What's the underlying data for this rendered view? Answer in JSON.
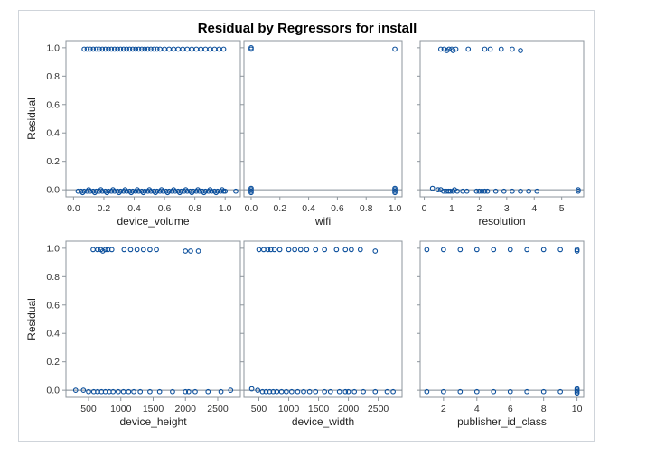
{
  "title": "Residual by Regressors for install",
  "colors": {
    "marker": "#0b4f9c",
    "refline": "#7f8a95",
    "frame": "#8d959c",
    "tick": "#333333"
  },
  "chart_data": [
    {
      "type": "scatter",
      "panel": 1,
      "xlabel": "device_volume",
      "ylabel": "Residual",
      "xlim": [
        -0.05,
        1.1
      ],
      "ylim": [
        -0.05,
        1.05
      ],
      "xticks": [
        0.0,
        0.2,
        0.4,
        0.6,
        0.8,
        1.0
      ],
      "xtick_labels": [
        "0.0",
        "0.2",
        "0.4",
        "0.6",
        "0.8",
        "1.0"
      ],
      "yticks": [
        0.0,
        0.2,
        0.4,
        0.6,
        0.8,
        1.0
      ],
      "ytick_labels": [
        "0.0",
        "0.2",
        "0.4",
        "0.6",
        "0.8",
        "1.0"
      ],
      "reference_y": 0,
      "points": [
        [
          0.07,
          0.99
        ],
        [
          0.09,
          0.99
        ],
        [
          0.11,
          0.99
        ],
        [
          0.13,
          0.99
        ],
        [
          0.15,
          0.99
        ],
        [
          0.17,
          0.99
        ],
        [
          0.19,
          0.99
        ],
        [
          0.21,
          0.99
        ],
        [
          0.23,
          0.99
        ],
        [
          0.25,
          0.99
        ],
        [
          0.27,
          0.99
        ],
        [
          0.29,
          0.99
        ],
        [
          0.31,
          0.99
        ],
        [
          0.33,
          0.99
        ],
        [
          0.35,
          0.99
        ],
        [
          0.37,
          0.99
        ],
        [
          0.39,
          0.99
        ],
        [
          0.41,
          0.99
        ],
        [
          0.43,
          0.99
        ],
        [
          0.45,
          0.99
        ],
        [
          0.47,
          0.99
        ],
        [
          0.49,
          0.99
        ],
        [
          0.51,
          0.99
        ],
        [
          0.53,
          0.99
        ],
        [
          0.55,
          0.99
        ],
        [
          0.57,
          0.99
        ],
        [
          0.6,
          0.99
        ],
        [
          0.63,
          0.99
        ],
        [
          0.66,
          0.99
        ],
        [
          0.69,
          0.99
        ],
        [
          0.72,
          0.99
        ],
        [
          0.75,
          0.99
        ],
        [
          0.78,
          0.99
        ],
        [
          0.81,
          0.99
        ],
        [
          0.84,
          0.99
        ],
        [
          0.87,
          0.99
        ],
        [
          0.9,
          0.99
        ],
        [
          0.93,
          0.99
        ],
        [
          0.96,
          0.99
        ],
        [
          0.99,
          0.99
        ],
        [
          0.03,
          -0.01
        ],
        [
          0.05,
          -0.01
        ],
        [
          0.07,
          -0.01
        ],
        [
          0.09,
          -0.01
        ],
        [
          0.11,
          -0.01
        ],
        [
          0.13,
          -0.01
        ],
        [
          0.15,
          -0.01
        ],
        [
          0.17,
          -0.01
        ],
        [
          0.19,
          -0.01
        ],
        [
          0.21,
          -0.01
        ],
        [
          0.23,
          -0.01
        ],
        [
          0.25,
          -0.01
        ],
        [
          0.27,
          -0.01
        ],
        [
          0.29,
          -0.01
        ],
        [
          0.31,
          -0.01
        ],
        [
          0.33,
          -0.01
        ],
        [
          0.35,
          -0.01
        ],
        [
          0.37,
          -0.01
        ],
        [
          0.39,
          -0.01
        ],
        [
          0.41,
          -0.01
        ],
        [
          0.43,
          -0.01
        ],
        [
          0.45,
          -0.01
        ],
        [
          0.47,
          -0.01
        ],
        [
          0.49,
          -0.01
        ],
        [
          0.51,
          -0.01
        ],
        [
          0.53,
          -0.01
        ],
        [
          0.55,
          -0.01
        ],
        [
          0.57,
          -0.01
        ],
        [
          0.59,
          -0.01
        ],
        [
          0.61,
          -0.01
        ],
        [
          0.63,
          -0.01
        ],
        [
          0.65,
          -0.01
        ],
        [
          0.67,
          -0.01
        ],
        [
          0.69,
          -0.01
        ],
        [
          0.71,
          -0.01
        ],
        [
          0.73,
          -0.01
        ],
        [
          0.75,
          -0.01
        ],
        [
          0.77,
          -0.01
        ],
        [
          0.79,
          -0.01
        ],
        [
          0.81,
          -0.01
        ],
        [
          0.83,
          -0.01
        ],
        [
          0.85,
          -0.01
        ],
        [
          0.87,
          -0.01
        ],
        [
          0.89,
          -0.01
        ],
        [
          0.91,
          -0.01
        ],
        [
          0.93,
          -0.01
        ],
        [
          0.95,
          -0.01
        ],
        [
          0.97,
          -0.01
        ],
        [
          0.99,
          -0.01
        ],
        [
          1.0,
          -0.01
        ],
        [
          1.07,
          -0.01
        ],
        [
          0.1,
          0.0
        ],
        [
          0.18,
          0.0
        ],
        [
          0.26,
          0.0
        ],
        [
          0.34,
          0.0
        ],
        [
          0.42,
          0.0
        ],
        [
          0.5,
          0.0
        ],
        [
          0.58,
          0.0
        ],
        [
          0.66,
          0.0
        ],
        [
          0.74,
          0.0
        ],
        [
          0.82,
          0.0
        ],
        [
          0.9,
          0.0
        ],
        [
          0.98,
          0.0
        ],
        [
          0.06,
          -0.02
        ],
        [
          0.14,
          -0.02
        ],
        [
          0.22,
          -0.02
        ],
        [
          0.3,
          -0.02
        ],
        [
          0.38,
          -0.02
        ],
        [
          0.46,
          -0.02
        ],
        [
          0.54,
          -0.02
        ],
        [
          0.62,
          -0.02
        ],
        [
          0.7,
          -0.02
        ],
        [
          0.78,
          -0.02
        ],
        [
          0.86,
          -0.02
        ],
        [
          0.94,
          -0.02
        ]
      ]
    },
    {
      "type": "scatter",
      "panel": 2,
      "xlabel": "wifi",
      "ylabel": "",
      "xlim": [
        -0.05,
        1.05
      ],
      "ylim": [
        -0.05,
        1.05
      ],
      "xticks": [
        0.0,
        0.2,
        0.4,
        0.6,
        0.8,
        1.0
      ],
      "xtick_labels": [
        "0.0",
        "0.2",
        "0.4",
        "0.6",
        "0.8",
        "1.0"
      ],
      "yticks": [
        0.0,
        0.2,
        0.4,
        0.6,
        0.8,
        1.0
      ],
      "ytick_labels": [],
      "reference_y": 0,
      "points": [
        [
          0,
          1.0
        ],
        [
          0,
          0.99
        ],
        [
          1,
          0.99
        ],
        [
          0,
          0.0
        ],
        [
          0,
          -0.01
        ],
        [
          0,
          -0.02
        ],
        [
          0,
          0.01
        ],
        [
          1,
          0.0
        ],
        [
          1,
          -0.01
        ],
        [
          1,
          -0.02
        ],
        [
          1,
          0.01
        ]
      ]
    },
    {
      "type": "scatter",
      "panel": 3,
      "xlabel": "resolution",
      "ylabel": "",
      "xlim": [
        -0.15,
        5.8
      ],
      "ylim": [
        -0.05,
        1.05
      ],
      "xticks": [
        0,
        1,
        2,
        3,
        4,
        5
      ],
      "xtick_labels": [
        "0",
        "1",
        "2",
        "3",
        "4",
        "5"
      ],
      "yticks": [
        0.0,
        0.2,
        0.4,
        0.6,
        0.8,
        1.0
      ],
      "ytick_labels": [],
      "reference_y": 0,
      "points": [
        [
          0.6,
          0.99
        ],
        [
          0.72,
          0.99
        ],
        [
          0.82,
          0.98
        ],
        [
          0.9,
          0.99
        ],
        [
          1.0,
          0.99
        ],
        [
          1.05,
          0.98
        ],
        [
          1.15,
          0.99
        ],
        [
          1.6,
          0.99
        ],
        [
          2.2,
          0.99
        ],
        [
          2.4,
          0.99
        ],
        [
          2.8,
          0.99
        ],
        [
          3.2,
          0.99
        ],
        [
          3.5,
          0.98
        ],
        [
          0.3,
          0.01
        ],
        [
          0.5,
          0.0
        ],
        [
          0.6,
          0.0
        ],
        [
          0.7,
          -0.01
        ],
        [
          0.8,
          -0.01
        ],
        [
          0.88,
          -0.01
        ],
        [
          0.95,
          -0.01
        ],
        [
          1.05,
          -0.01
        ],
        [
          1.1,
          0.0
        ],
        [
          1.2,
          -0.01
        ],
        [
          1.4,
          -0.01
        ],
        [
          1.55,
          -0.01
        ],
        [
          1.9,
          -0.01
        ],
        [
          2.0,
          -0.01
        ],
        [
          2.1,
          -0.01
        ],
        [
          2.2,
          -0.01
        ],
        [
          2.3,
          -0.01
        ],
        [
          2.6,
          -0.01
        ],
        [
          2.9,
          -0.01
        ],
        [
          3.2,
          -0.01
        ],
        [
          3.5,
          -0.01
        ],
        [
          3.8,
          -0.01
        ],
        [
          4.1,
          -0.01
        ],
        [
          5.6,
          -0.01
        ],
        [
          5.6,
          0.0
        ]
      ]
    },
    {
      "type": "scatter",
      "panel": 4,
      "xlabel": "device_height",
      "ylabel": "Residual",
      "xlim": [
        150,
        2850
      ],
      "ylim": [
        -0.05,
        1.05
      ],
      "xticks": [
        500,
        1000,
        1500,
        2000,
        2500
      ],
      "xtick_labels": [
        "500",
        "1000",
        "1500",
        "2000",
        "2500"
      ],
      "yticks": [
        0.0,
        0.2,
        0.4,
        0.6,
        0.8,
        1.0
      ],
      "ytick_labels": [
        "0.0",
        "0.2",
        "0.4",
        "0.6",
        "0.8",
        "1.0"
      ],
      "reference_y": 0,
      "points": [
        [
          570,
          0.99
        ],
        [
          640,
          0.99
        ],
        [
          690,
          0.99
        ],
        [
          720,
          0.98
        ],
        [
          760,
          0.99
        ],
        [
          800,
          0.99
        ],
        [
          860,
          0.99
        ],
        [
          1050,
          0.99
        ],
        [
          1150,
          0.99
        ],
        [
          1250,
          0.99
        ],
        [
          1350,
          0.99
        ],
        [
          1450,
          0.99
        ],
        [
          1550,
          0.99
        ],
        [
          2000,
          0.98
        ],
        [
          2080,
          0.98
        ],
        [
          2200,
          0.98
        ],
        [
          300,
          0.0
        ],
        [
          420,
          0.0
        ],
        [
          500,
          -0.01
        ],
        [
          580,
          -0.01
        ],
        [
          640,
          -0.01
        ],
        [
          700,
          -0.01
        ],
        [
          760,
          -0.01
        ],
        [
          820,
          -0.01
        ],
        [
          880,
          -0.01
        ],
        [
          960,
          -0.01
        ],
        [
          1040,
          -0.01
        ],
        [
          1120,
          -0.01
        ],
        [
          1200,
          -0.01
        ],
        [
          1300,
          -0.01
        ],
        [
          1450,
          -0.01
        ],
        [
          1600,
          -0.01
        ],
        [
          1800,
          -0.01
        ],
        [
          2000,
          -0.01
        ],
        [
          2050,
          -0.01
        ],
        [
          2150,
          -0.01
        ],
        [
          2350,
          -0.01
        ],
        [
          2550,
          -0.01
        ],
        [
          2700,
          0.0
        ]
      ]
    },
    {
      "type": "scatter",
      "panel": 5,
      "xlabel": "device_width",
      "ylabel": "",
      "xlim": [
        250,
        2900
      ],
      "ylim": [
        -0.05,
        1.05
      ],
      "xticks": [
        500,
        1000,
        1500,
        2000,
        2500
      ],
      "xtick_labels": [
        "500",
        "1000",
        "1500",
        "2000",
        "2500"
      ],
      "yticks": [
        0.0,
        0.2,
        0.4,
        0.6,
        0.8,
        1.0
      ],
      "ytick_labels": [],
      "reference_y": 0,
      "points": [
        [
          500,
          0.99
        ],
        [
          580,
          0.99
        ],
        [
          650,
          0.99
        ],
        [
          700,
          0.99
        ],
        [
          760,
          0.99
        ],
        [
          850,
          0.99
        ],
        [
          1000,
          0.99
        ],
        [
          1100,
          0.99
        ],
        [
          1200,
          0.99
        ],
        [
          1300,
          0.99
        ],
        [
          1450,
          0.99
        ],
        [
          1600,
          0.99
        ],
        [
          1800,
          0.99
        ],
        [
          1950,
          0.99
        ],
        [
          2050,
          0.99
        ],
        [
          2200,
          0.99
        ],
        [
          2450,
          0.98
        ],
        [
          380,
          0.01
        ],
        [
          480,
          0.0
        ],
        [
          560,
          -0.01
        ],
        [
          620,
          -0.01
        ],
        [
          680,
          -0.01
        ],
        [
          740,
          -0.01
        ],
        [
          800,
          -0.01
        ],
        [
          880,
          -0.01
        ],
        [
          960,
          -0.01
        ],
        [
          1050,
          -0.01
        ],
        [
          1150,
          -0.01
        ],
        [
          1250,
          -0.01
        ],
        [
          1350,
          -0.01
        ],
        [
          1450,
          -0.01
        ],
        [
          1600,
          -0.01
        ],
        [
          1700,
          -0.01
        ],
        [
          1850,
          -0.01
        ],
        [
          1950,
          -0.01
        ],
        [
          2000,
          -0.01
        ],
        [
          2100,
          -0.01
        ],
        [
          2250,
          -0.01
        ],
        [
          2450,
          -0.01
        ],
        [
          2650,
          -0.01
        ],
        [
          2750,
          -0.01
        ]
      ]
    },
    {
      "type": "scatter",
      "panel": 6,
      "xlabel": "publisher_id_class",
      "ylabel": "",
      "xlim": [
        0.6,
        10.4
      ],
      "ylim": [
        -0.05,
        1.05
      ],
      "xticks": [
        2,
        4,
        6,
        8,
        10
      ],
      "xtick_labels": [
        "2",
        "4",
        "6",
        "8",
        "10"
      ],
      "yticks": [
        0.0,
        0.2,
        0.4,
        0.6,
        0.8,
        1.0
      ],
      "ytick_labels": [],
      "reference_y": 0,
      "points": [
        [
          1,
          0.99
        ],
        [
          2,
          0.99
        ],
        [
          3,
          0.99
        ],
        [
          4,
          0.99
        ],
        [
          5,
          0.99
        ],
        [
          6,
          0.99
        ],
        [
          7,
          0.99
        ],
        [
          8,
          0.99
        ],
        [
          9,
          0.99
        ],
        [
          10,
          0.99
        ],
        [
          10,
          0.98
        ],
        [
          1,
          -0.01
        ],
        [
          2,
          -0.01
        ],
        [
          3,
          -0.01
        ],
        [
          4,
          -0.01
        ],
        [
          5,
          -0.01
        ],
        [
          6,
          -0.01
        ],
        [
          7,
          -0.01
        ],
        [
          8,
          -0.01
        ],
        [
          9,
          -0.01
        ],
        [
          10,
          -0.01
        ],
        [
          10,
          0.0
        ],
        [
          10,
          -0.02
        ],
        [
          10,
          0.01
        ]
      ]
    }
  ]
}
